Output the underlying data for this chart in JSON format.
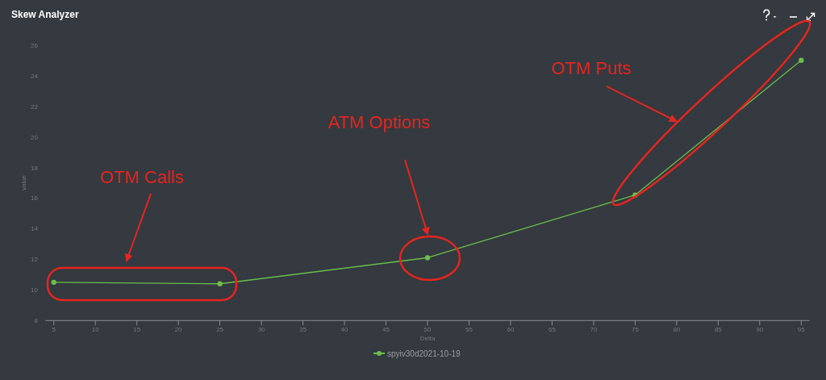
{
  "chart_data": {
    "type": "line",
    "title": "Skew Analyzer",
    "xlabel": "Delta",
    "ylabel": "value",
    "x": [
      5,
      25,
      50,
      75,
      95
    ],
    "series": [
      {
        "name": "spyiv30d2021-10-19",
        "color": "#6abf4b",
        "values": [
          10.5,
          10.4,
          12.1,
          16.2,
          25.0
        ]
      }
    ],
    "xlim": [
      4,
      96
    ],
    "xticks": [
      5,
      10,
      15,
      20,
      25,
      30,
      35,
      40,
      45,
      50,
      55,
      60,
      65,
      70,
      75,
      80,
      85,
      90,
      95
    ],
    "ylim": [
      8,
      26
    ],
    "yticks": [
      8,
      10,
      12,
      14,
      16,
      18,
      20,
      22,
      24,
      26
    ],
    "marker": "circle",
    "line_style": "solid",
    "legend": "bottom",
    "grid": false,
    "annotations": [
      "OTM Calls",
      "ATM Options",
      "OTM Puts"
    ]
  }
}
